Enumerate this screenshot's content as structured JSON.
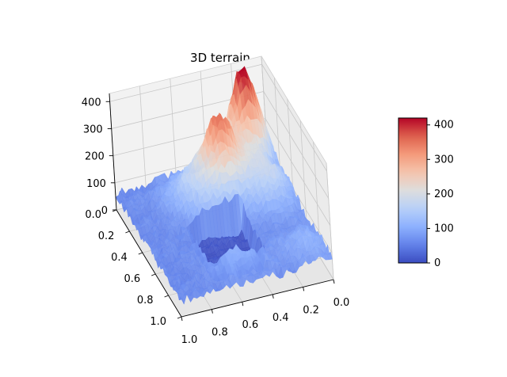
{
  "chart_data": {
    "type": "surface3d",
    "title": "3D terrain",
    "colormap": "coolwarm",
    "grid": true,
    "x_ticks": [
      "0.0",
      "0.2",
      "0.4",
      "0.6",
      "0.8",
      "1.0"
    ],
    "y_ticks": [
      "0.0",
      "0.2",
      "0.4",
      "0.6",
      "0.8",
      "1.0"
    ],
    "z_ticks": [
      "0",
      "100",
      "200",
      "300",
      "400"
    ],
    "xlim": [
      0,
      1
    ],
    "ylim": [
      0,
      1
    ],
    "zlim": [
      0,
      430
    ],
    "colorbar": {
      "ticks": [
        "0",
        "100",
        "200",
        "300",
        "400"
      ],
      "range": [
        0,
        420
      ],
      "placement": "right"
    },
    "terrain_features": [
      {
        "x": 0.15,
        "y": 0.05,
        "height": 420
      },
      {
        "x": 0.38,
        "y": 0.22,
        "height": 300
      },
      {
        "x": 0.15,
        "y": 0.35,
        "height": 180
      },
      {
        "x": 0.5,
        "y": 0.35,
        "height": 140
      },
      {
        "x": 0.6,
        "y": 0.2,
        "height": 130
      },
      {
        "x": 0.1,
        "y": 0.85,
        "height": 110
      },
      {
        "x": 0.55,
        "y": 0.8,
        "height": 110
      }
    ],
    "base_height": 60,
    "flat_areas": [
      {
        "x": [
          0.35,
          0.7
        ],
        "y": [
          0.45,
          0.8
        ],
        "height": 0
      }
    ]
  }
}
